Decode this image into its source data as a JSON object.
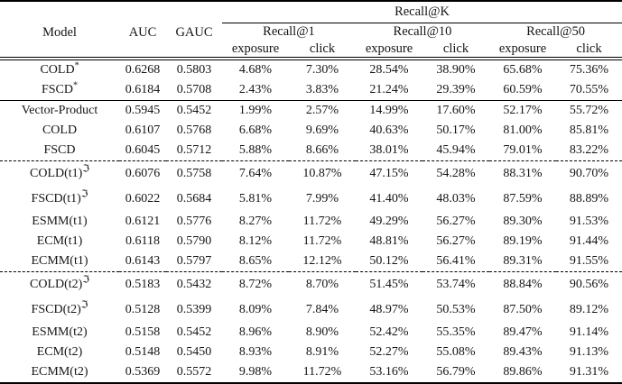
{
  "header": {
    "model": "Model",
    "auc": "AUC",
    "gauc": "GAUC",
    "recall_k": "Recall@K",
    "recall_groups": [
      "Recall@1",
      "Recall@10",
      "Recall@50"
    ],
    "sub_columns": [
      "exposure",
      "click",
      "exposure",
      "click",
      "exposure",
      "click"
    ]
  },
  "groups": [
    {
      "separator": "none",
      "rows": [
        {
          "model": "COLD",
          "sup": "*",
          "values": [
            "0.6268",
            "0.5803",
            "4.68%",
            "7.30%",
            "28.54%",
            "38.90%",
            "65.68%",
            "75.36%"
          ]
        },
        {
          "model": "FSCD",
          "sup": "*",
          "values": [
            "0.6184",
            "0.5708",
            "2.43%",
            "3.83%",
            "21.24%",
            "29.39%",
            "60.59%",
            "70.55%"
          ]
        }
      ]
    },
    {
      "separator": "solid",
      "rows": [
        {
          "model": "Vector-Product",
          "sup": "",
          "values": [
            "0.5945",
            "0.5452",
            "1.99%",
            "2.57%",
            "14.99%",
            "17.60%",
            "52.17%",
            "55.72%"
          ]
        },
        {
          "model": "COLD",
          "sup": "",
          "values": [
            "0.6107",
            "0.5768",
            "6.68%",
            "9.69%",
            "40.63%",
            "50.17%",
            "81.00%",
            "85.81%"
          ]
        },
        {
          "model": "FSCD",
          "sup": "",
          "values": [
            "0.6045",
            "0.5712",
            "5.88%",
            "8.66%",
            "38.01%",
            "45.94%",
            "79.01%",
            "83.22%"
          ]
        }
      ]
    },
    {
      "separator": "dashed",
      "rows": [
        {
          "model": "COLD(t1)",
          "sup": "ℑ",
          "values": [
            "0.6076",
            "0.5758",
            "7.64%",
            "10.87%",
            "47.15%",
            "54.28%",
            "88.31%",
            "90.70%"
          ]
        },
        {
          "model": "FSCD(t1)",
          "sup": "ℑ",
          "values": [
            "0.6022",
            "0.5684",
            "5.81%",
            "7.99%",
            "41.40%",
            "48.03%",
            "87.59%",
            "88.89%"
          ]
        },
        {
          "model": "ESMM(t1)",
          "sup": "",
          "values": [
            "0.6121",
            "0.5776",
            "8.27%",
            "11.72%",
            "49.29%",
            "56.27%",
            "89.30%",
            "91.53%"
          ]
        },
        {
          "model": "ECM(t1)",
          "sup": "",
          "values": [
            "0.6118",
            "0.5790",
            "8.12%",
            "11.72%",
            "48.81%",
            "56.27%",
            "89.19%",
            "91.44%"
          ]
        },
        {
          "model": "ECMM(t1)",
          "sup": "",
          "values": [
            "0.6143",
            "0.5797",
            "8.65%",
            "12.12%",
            "50.12%",
            "56.41%",
            "89.31%",
            "91.55%"
          ]
        }
      ]
    },
    {
      "separator": "dashed",
      "rows": [
        {
          "model": "COLD(t2)",
          "sup": "ℑ",
          "values": [
            "0.5183",
            "0.5432",
            "8.72%",
            "8.70%",
            "51.45%",
            "53.74%",
            "88.84%",
            "90.56%"
          ]
        },
        {
          "model": "FSCD(t2)",
          "sup": "ℑ",
          "values": [
            "0.5128",
            "0.5399",
            "8.09%",
            "7.84%",
            "48.97%",
            "50.53%",
            "87.50%",
            "89.12%"
          ]
        },
        {
          "model": "ESMM(t2)",
          "sup": "",
          "values": [
            "0.5158",
            "0.5452",
            "8.96%",
            "8.90%",
            "52.42%",
            "55.35%",
            "89.47%",
            "91.14%"
          ]
        },
        {
          "model": "ECM(t2)",
          "sup": "",
          "values": [
            "0.5148",
            "0.5450",
            "8.93%",
            "8.91%",
            "52.27%",
            "55.08%",
            "89.43%",
            "91.13%"
          ]
        },
        {
          "model": "ECMM(t2)",
          "sup": "",
          "values": [
            "0.5369",
            "0.5572",
            "9.98%",
            "11.72%",
            "53.16%",
            "56.79%",
            "89.86%",
            "91.31%"
          ]
        }
      ]
    }
  ]
}
